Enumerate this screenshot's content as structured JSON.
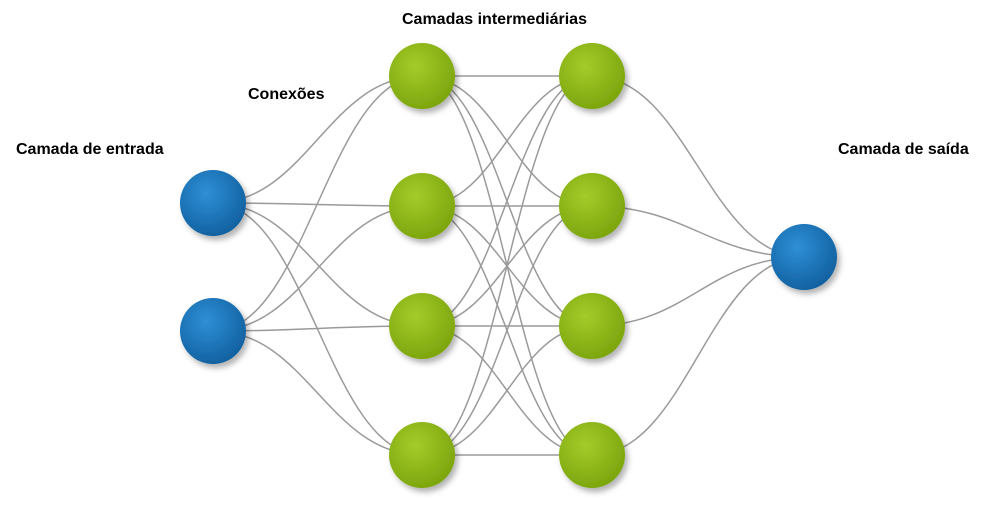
{
  "labels": {
    "hidden_layers": "Camadas intermediárias",
    "connections": "Conexões",
    "input_layer": "Camada de entrada",
    "output_layer": "Camada de saída"
  },
  "colors": {
    "input_node": "#1a73b8",
    "hidden_node": "#8cb814",
    "output_node": "#1a73b8",
    "edge": "#9a9a9a"
  },
  "layers": [
    {
      "role": "input",
      "count": 2
    },
    {
      "role": "hidden",
      "count": 4
    },
    {
      "role": "hidden",
      "count": 4
    },
    {
      "role": "output",
      "count": 1
    }
  ],
  "connectivity": "fully-connected"
}
